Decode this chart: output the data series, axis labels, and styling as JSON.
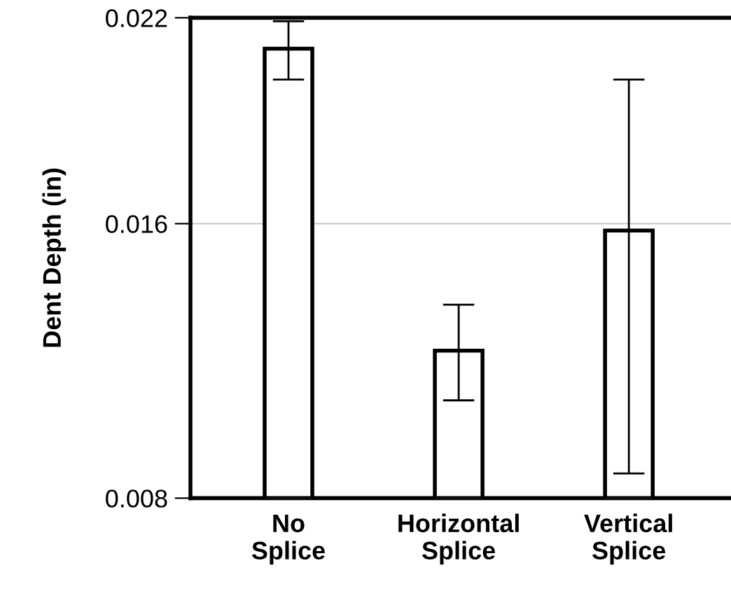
{
  "chart_data": {
    "type": "bar",
    "ylabel": "Dent Depth (in)",
    "categories": [
      "No\nSplice",
      "Horizontal\nSplice",
      "Vertical\nSplice"
    ],
    "values": [
      0.0211,
      0.0123,
      0.0158
    ],
    "errors": [
      [
        0.0202,
        0.0219
      ],
      [
        0.01085,
        0.01364
      ],
      [
        0.00872,
        0.0202
      ]
    ],
    "color": "#ffffff",
    "ylim": [
      0.008,
      0.022
    ],
    "yticks": [
      0.008,
      0.016,
      0.022
    ],
    "ref_lines": [
      {
        "axis": "y",
        "value": 0.016,
        "color": "#cccccc"
      }
    ]
  }
}
